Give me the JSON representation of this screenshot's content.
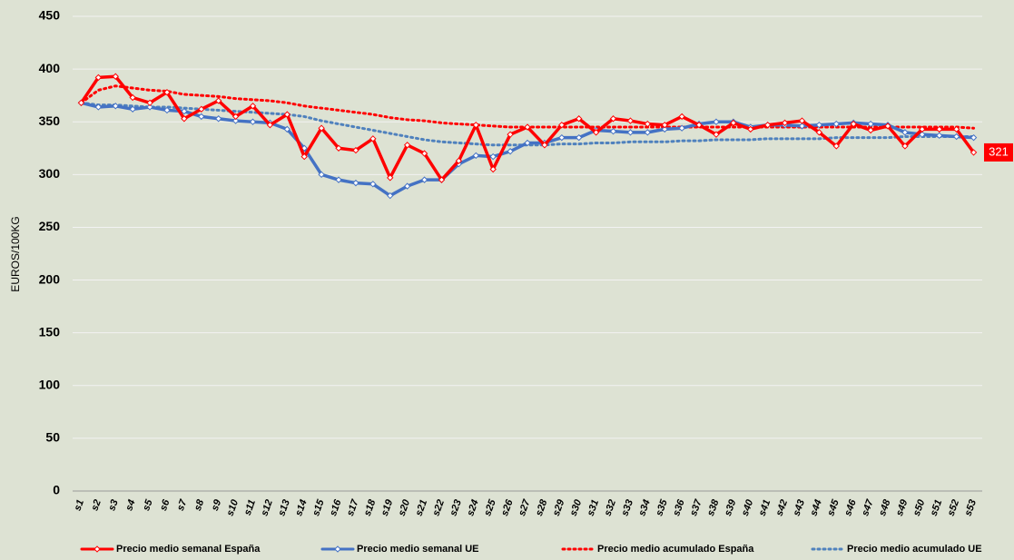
{
  "chart_data": {
    "type": "line",
    "y_label": "EUROS/100KG",
    "categories": [
      "s1",
      "s2",
      "s3",
      "s4",
      "s5",
      "s6",
      "s7",
      "s8",
      "s9",
      "s10",
      "s11",
      "s12",
      "s13",
      "s14",
      "s15",
      "s16",
      "s17",
      "s18",
      "s19",
      "s20",
      "s21",
      "s22",
      "s23",
      "s24",
      "s25",
      "s26",
      "s27",
      "s28",
      "s29",
      "s30",
      "s31",
      "s32",
      "s33",
      "s34",
      "s35",
      "s36",
      "s37",
      "s38",
      "s39",
      "s40",
      "s41",
      "s42",
      "s43",
      "s44",
      "s45",
      "s46",
      "s47",
      "s48",
      "s49",
      "s50",
      "s51",
      "s52",
      "s53"
    ],
    "series": [
      {
        "name": "Precio medio semanal España",
        "color": "#ff0000",
        "style": "solid",
        "markers": true,
        "values": [
          368,
          392,
          393,
          373,
          368,
          378,
          353,
          362,
          370,
          355,
          365,
          347,
          357,
          317,
          344,
          325,
          323,
          334,
          297,
          328,
          320,
          295,
          313,
          347,
          305,
          338,
          345,
          328,
          347,
          353,
          340,
          353,
          351,
          348,
          347,
          355,
          347,
          338,
          349,
          343,
          347,
          349,
          351,
          340,
          327,
          348,
          342,
          346,
          327,
          343,
          343,
          343,
          321
        ]
      },
      {
        "name": "Precio medio semanal UE",
        "color": "#4472c4",
        "style": "solid",
        "markers": true,
        "values": [
          368,
          364,
          365,
          362,
          364,
          361,
          360,
          355,
          353,
          351,
          350,
          349,
          343,
          325,
          300,
          295,
          292,
          291,
          280,
          289,
          295,
          295,
          310,
          318,
          317,
          322,
          330,
          330,
          335,
          335,
          342,
          341,
          340,
          340,
          343,
          344,
          348,
          350,
          350,
          345,
          347,
          347,
          346,
          347,
          348,
          349,
          348,
          347,
          340,
          338,
          337,
          336,
          335
        ]
      },
      {
        "name": "Precio medio acumulado España",
        "color": "#ff0000",
        "style": "dotted",
        "markers": false,
        "values": [
          368,
          380,
          384,
          382,
          380,
          379,
          376,
          375,
          374,
          372,
          371,
          370,
          368,
          365,
          363,
          361,
          359,
          357,
          354,
          352,
          351,
          349,
          348,
          347,
          346,
          345,
          345,
          345,
          345,
          345,
          345,
          345,
          345,
          345,
          345,
          345,
          345,
          345,
          345,
          345,
          345,
          345,
          345,
          345,
          345,
          345,
          345,
          345,
          345,
          345,
          345,
          345,
          344
        ]
      },
      {
        "name": "Precio medio acumulado UE",
        "color": "#4f81bd",
        "style": "dotted",
        "markers": false,
        "values": [
          368,
          366,
          366,
          365,
          364,
          364,
          363,
          362,
          361,
          360,
          359,
          358,
          357,
          355,
          351,
          348,
          345,
          342,
          339,
          336,
          333,
          331,
          330,
          329,
          328,
          328,
          328,
          328,
          329,
          329,
          330,
          330,
          331,
          331,
          331,
          332,
          332,
          333,
          333,
          333,
          334,
          334,
          334,
          334,
          335,
          335,
          335,
          335,
          336,
          336,
          336,
          336,
          336
        ]
      }
    ],
    "ylim": [
      0,
      450
    ],
    "yticks": [
      0,
      50,
      100,
      150,
      200,
      250,
      300,
      350,
      400,
      450
    ],
    "grid": true
  }
}
